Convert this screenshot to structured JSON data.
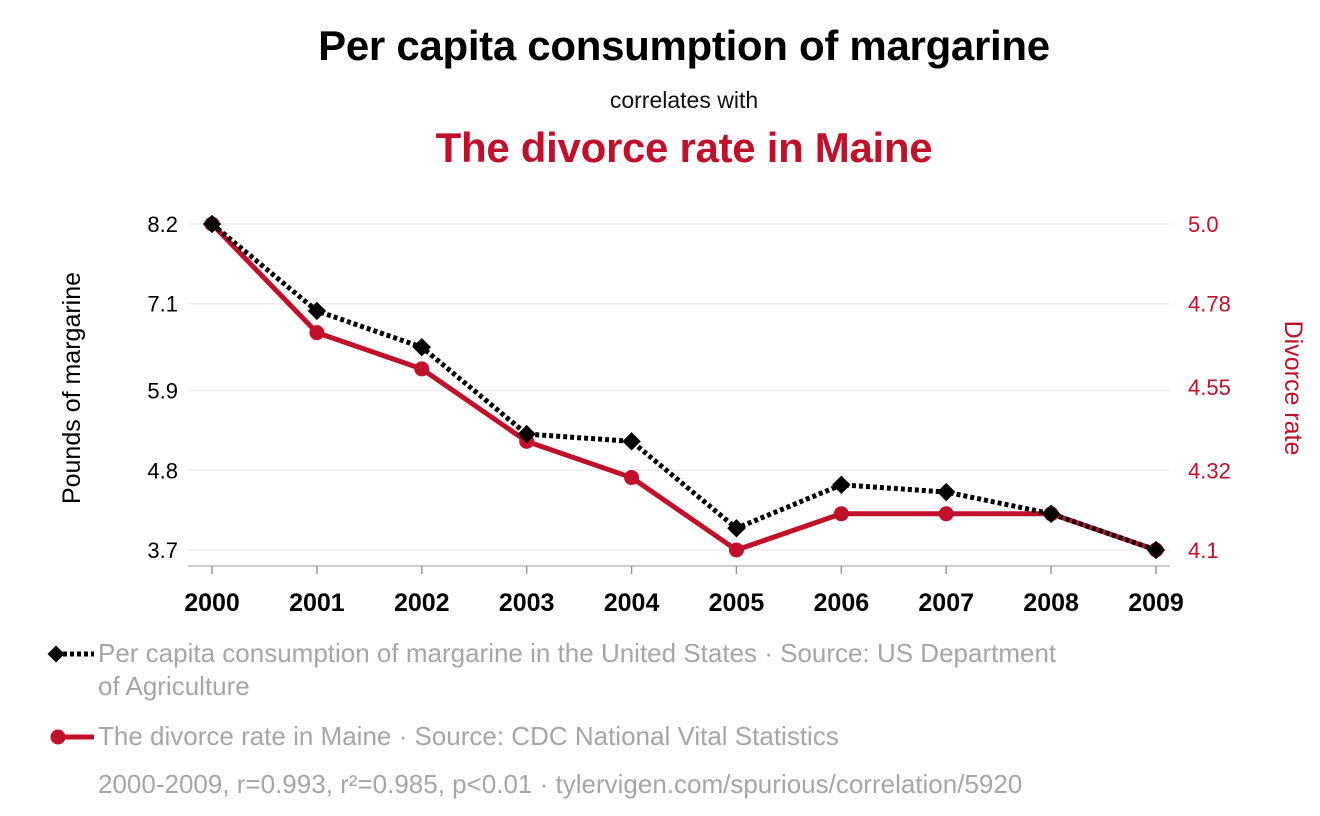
{
  "header": {
    "title": "Per capita consumption of margarine",
    "subtitle": "correlates with",
    "title2": "The divorce rate in Maine"
  },
  "colors": {
    "series1": "#000000",
    "series2": "#c0102a",
    "grid": "#eeeeee",
    "legend_text": "#a6a6a6"
  },
  "chart_data": {
    "type": "line",
    "x": [
      2000,
      2001,
      2002,
      2003,
      2004,
      2005,
      2006,
      2007,
      2008,
      2009
    ],
    "x_tick_labels": [
      "2000",
      "2001",
      "2002",
      "2003",
      "2004",
      "2005",
      "2006",
      "2007",
      "2008",
      "2009"
    ],
    "left_axis": {
      "label": "Pounds of margarine",
      "tick_labels": [
        "8.2",
        "7.1",
        "5.9",
        "4.8",
        "3.7"
      ],
      "ticks": [
        8.2,
        7.1,
        5.9,
        4.8,
        3.7
      ],
      "ylim": [
        3.7,
        8.2
      ]
    },
    "right_axis": {
      "label": "Divorce rate",
      "tick_labels": [
        "5.0",
        "4.78",
        "4.55",
        "4.32",
        "4.1"
      ],
      "ticks": [
        5.0,
        4.78,
        4.55,
        4.32,
        4.1
      ],
      "ylim": [
        4.1,
        5.0
      ]
    },
    "series": [
      {
        "name": "Per capita consumption of margarine in the United States",
        "axis": "left",
        "style": "dotted, diamond markers",
        "values": [
          8.2,
          7.0,
          6.5,
          5.3,
          5.2,
          4.0,
          4.6,
          4.5,
          4.2,
          3.7
        ]
      },
      {
        "name": "The divorce rate in Maine",
        "axis": "right",
        "style": "solid, circle markers",
        "values": [
          5.0,
          4.7,
          4.6,
          4.4,
          4.3,
          4.1,
          4.2,
          4.2,
          4.2,
          4.1
        ]
      }
    ],
    "grid": true,
    "legend_position": "bottom"
  },
  "legend": {
    "item1": "Per capita consumption of margarine in the United States · Source: US Department of Agriculture",
    "item2": "The divorce rate in Maine · Source: CDC National Vital Statistics"
  },
  "footnote": "2000-2009, r=0.993, r²=0.985, p<0.01 · tylervigen.com/spurious/correlation/5920"
}
